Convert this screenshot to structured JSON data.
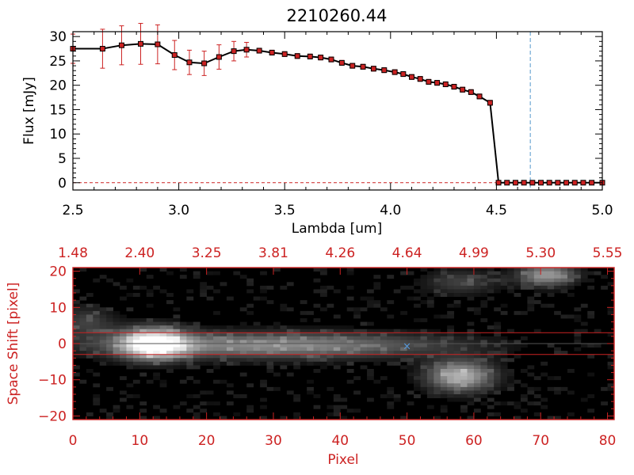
{
  "chart_data": [
    {
      "type": "line",
      "title": "2210260.44",
      "xlabel": "Lambda [um]",
      "ylabel": "Flux [mJy]",
      "xlim": [
        2.5,
        5.0
      ],
      "ylim": [
        -1.5,
        31
      ],
      "xticks": [
        2.5,
        3.0,
        3.5,
        4.0,
        4.5,
        5.0
      ],
      "xtick_labels": [
        "2.5",
        "3.0",
        "3.5",
        "4.0",
        "4.5",
        "5.0"
      ],
      "yticks": [
        0,
        5,
        10,
        15,
        20,
        25,
        30
      ],
      "ytick_labels": [
        "0",
        "5",
        "10",
        "15",
        "20",
        "25",
        "30"
      ],
      "reference_line_x": 4.66,
      "series": [
        {
          "name": "flux",
          "x": [
            2.5,
            2.64,
            2.73,
            2.82,
            2.9,
            2.98,
            3.05,
            3.12,
            3.19,
            3.26,
            3.32,
            3.38,
            3.44,
            3.5,
            3.56,
            3.62,
            3.67,
            3.72,
            3.77,
            3.82,
            3.87,
            3.92,
            3.97,
            4.02,
            4.06,
            4.1,
            4.14,
            4.18,
            4.22,
            4.26,
            4.3,
            4.34,
            4.38,
            4.42,
            4.47,
            4.51,
            4.55,
            4.59,
            4.63,
            4.67,
            4.71,
            4.75,
            4.79,
            4.83,
            4.87,
            4.91,
            4.95,
            5.0
          ],
          "y": [
            27.5,
            27.5,
            28.2,
            28.5,
            28.4,
            26.2,
            24.7,
            24.5,
            25.8,
            27.0,
            27.3,
            27.1,
            26.7,
            26.4,
            26.0,
            25.9,
            25.7,
            25.3,
            24.6,
            24.0,
            23.8,
            23.4,
            23.1,
            22.7,
            22.3,
            21.7,
            21.3,
            20.7,
            20.5,
            20.2,
            19.7,
            19.1,
            18.6,
            17.7,
            16.4,
            0,
            0,
            0,
            0,
            0,
            0,
            0,
            0,
            0,
            0,
            0,
            0,
            0
          ],
          "yerr": [
            3.0,
            4.0,
            4.0,
            4.2,
            4.0,
            3.0,
            2.5,
            2.5,
            2.5,
            2.0,
            1.5,
            0.5,
            0.5,
            0.5,
            0.5,
            0.5,
            0.5,
            0.5,
            0.5,
            0.5,
            0.5,
            0.5,
            0.5,
            0.5,
            0.5,
            0.5,
            0.5,
            0.5,
            0.5,
            0.5,
            0.5,
            0.5,
            0.5,
            0.5,
            0.5,
            0,
            0,
            0,
            0,
            0,
            0,
            0,
            0,
            0,
            0,
            0,
            0,
            0
          ]
        }
      ]
    },
    {
      "type": "heatmap",
      "xlabel": "Pixel",
      "ylabel": "Space Shift [pixel]",
      "xlim": [
        0,
        81
      ],
      "ylim": [
        -21,
        21
      ],
      "xticks": [
        0,
        10,
        20,
        30,
        40,
        50,
        60,
        70,
        80
      ],
      "xtick_labels": [
        "0",
        "10",
        "20",
        "30",
        "40",
        "50",
        "60",
        "70",
        "80"
      ],
      "yticks": [
        -20,
        -10,
        0,
        10,
        20
      ],
      "ytick_labels": [
        "−20",
        "−10",
        "0",
        "10",
        "20"
      ],
      "top_axis_wavelengths": [
        "1.48",
        "2.40",
        "3.25",
        "3.81",
        "4.26",
        "4.64",
        "4.99",
        "5.30",
        "5.55"
      ],
      "extraction_aperture": [
        -3,
        3
      ],
      "marker": {
        "pixel": 50,
        "shift": -0.5,
        "color": "#5599dd"
      },
      "sources": [
        {
          "pixel": 12,
          "shift": 0,
          "brightness": 1.0,
          "sigma_pixel": 3.5,
          "sigma_shift": 3.0
        },
        {
          "pixel": 30,
          "shift": -0.5,
          "brightness": 0.55,
          "sigma_pixel": 18,
          "sigma_shift": 2.5
        },
        {
          "pixel": 58,
          "shift": -9,
          "brightness": 0.7,
          "sigma_pixel": 3.5,
          "sigma_shift": 3.0
        },
        {
          "pixel": 71,
          "shift": 19,
          "brightness": 0.6,
          "sigma_pixel": 3.0,
          "sigma_shift": 2.2
        },
        {
          "pixel": 58,
          "shift": 17,
          "brightness": 0.25,
          "sigma_pixel": 4.0,
          "sigma_shift": 2.5
        },
        {
          "pixel": 2,
          "shift": 6,
          "brightness": 0.25,
          "sigma_pixel": 3.0,
          "sigma_shift": 3.0
        }
      ]
    }
  ],
  "colors": {
    "axis": "#000000",
    "axis2": "#cc2222",
    "marker": "#cc2222",
    "refline": "#5599cc"
  }
}
